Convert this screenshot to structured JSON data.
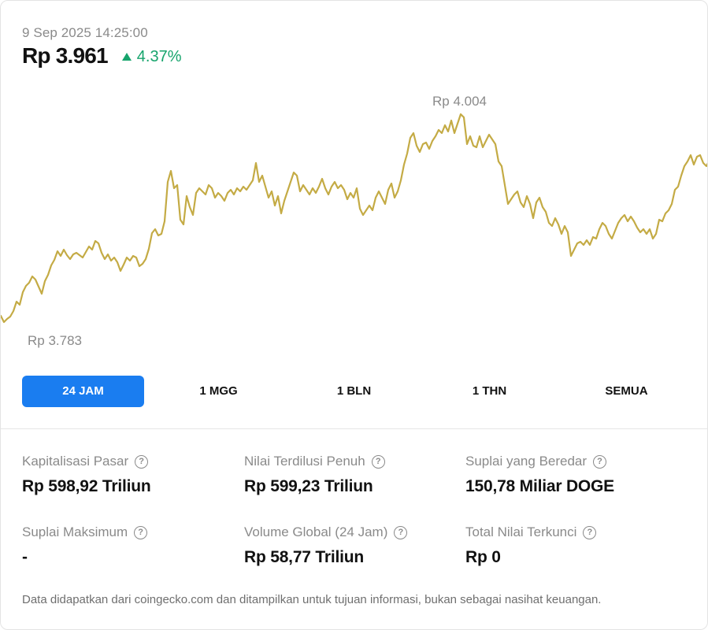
{
  "header": {
    "timestamp": "9 Sep 2025 14:25:00",
    "price": "Rp 3.961",
    "change": "4.37%",
    "change_direction": "up",
    "change_color": "#16a46c"
  },
  "chart": {
    "high_label": "Rp 4.004",
    "low_label": "Rp 3.783",
    "line_color": "#c4ab45"
  },
  "periods": [
    {
      "label": "24 JAM",
      "active": true
    },
    {
      "label": "1 MGG",
      "active": false
    },
    {
      "label": "1 BLN",
      "active": false
    },
    {
      "label": "1 THN",
      "active": false
    },
    {
      "label": "SEMUA",
      "active": false
    }
  ],
  "accent_color": "#1a7df0",
  "stats": [
    {
      "label": "Kapitalisasi Pasar",
      "value": "Rp 598,92 Triliun",
      "icon": "help-circle-icon"
    },
    {
      "label": "Nilai Terdilusi Penuh",
      "value": "Rp 599,23 Triliun",
      "icon": "help-circle-icon"
    },
    {
      "label": "Suplai yang Beredar",
      "value": "150,78 Miliar DOGE",
      "icon": "help-circle-icon"
    },
    {
      "label": "Suplai Maksimum",
      "value": "-",
      "icon": "help-circle-icon"
    },
    {
      "label": "Volume Global (24 Jam)",
      "value": "Rp 58,77 Triliun",
      "icon": "help-circle-icon"
    },
    {
      "label": "Total Nilai Terkunci",
      "value": "Rp 0",
      "icon": "help-circle-icon"
    }
  ],
  "disclaimer": "Data didapatkan dari coingecko.com dan ditampilkan untuk tujuan informasi, bukan sebagai nasihat keuangan."
}
